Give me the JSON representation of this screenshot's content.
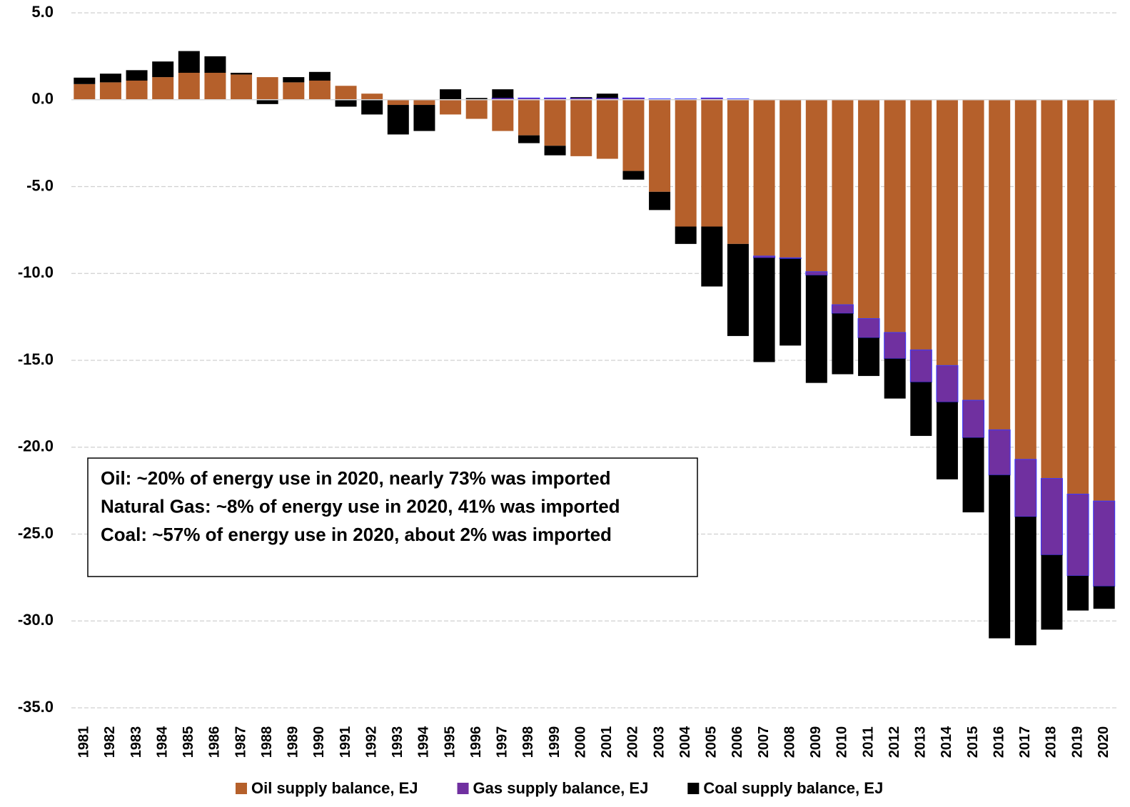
{
  "chart_data": {
    "type": "bar",
    "stacked": true,
    "categories": [
      "1981",
      "1982",
      "1983",
      "1984",
      "1985",
      "1986",
      "1987",
      "1988",
      "1989",
      "1990",
      "1991",
      "1992",
      "1993",
      "1994",
      "1995",
      "1996",
      "1997",
      "1998",
      "1999",
      "2000",
      "2001",
      "2002",
      "2003",
      "2004",
      "2005",
      "2006",
      "2007",
      "2008",
      "2009",
      "2010",
      "2011",
      "2012",
      "2013",
      "2014",
      "2015",
      "2016",
      "2017",
      "2018",
      "2019",
      "2020"
    ],
    "series": [
      {
        "name": "Oil supply balance, EJ",
        "color": "#b5602b",
        "values": [
          0.9,
          1.0,
          1.1,
          1.3,
          1.55,
          1.55,
          1.45,
          1.3,
          1.0,
          1.1,
          0.8,
          0.35,
          -0.3,
          -0.3,
          -0.85,
          -1.1,
          -1.8,
          -2.05,
          -2.65,
          -3.25,
          -3.4,
          -4.1,
          -5.3,
          -7.3,
          -7.3,
          -8.3,
          -9.0,
          -9.1,
          -9.9,
          -11.8,
          -12.6,
          -13.4,
          -14.4,
          -15.3,
          -17.3,
          -19.0,
          -20.7,
          -21.8,
          -22.7,
          -23.1
        ]
      },
      {
        "name": "Gas supply balance, EJ",
        "color": "#7030a0",
        "values": [
          0,
          0,
          0,
          0,
          0,
          0,
          0,
          0,
          0,
          0,
          0,
          0,
          0,
          0,
          0,
          0,
          0.1,
          0.1,
          0.1,
          0.1,
          0.1,
          0.1,
          0.05,
          0.05,
          0.1,
          0.05,
          -0.1,
          -0.05,
          -0.2,
          -0.5,
          -1.1,
          -1.5,
          -1.85,
          -2.1,
          -2.15,
          -2.6,
          -3.3,
          -4.4,
          -4.7,
          -4.9
        ]
      },
      {
        "name": "Coal supply balance, EJ",
        "color": "#000000",
        "values": [
          0.37,
          0.5,
          0.6,
          0.9,
          1.25,
          0.95,
          0.1,
          -0.25,
          0.3,
          0.5,
          -0.4,
          -0.85,
          -1.7,
          -1.5,
          0.6,
          0.1,
          0.5,
          -0.45,
          -0.55,
          0.05,
          0.25,
          -0.5,
          -1.05,
          -1.0,
          -3.45,
          -5.3,
          -6.0,
          -5.0,
          -6.2,
          -3.5,
          -2.2,
          -2.3,
          -3.1,
          -4.45,
          -4.3,
          -9.4,
          -7.4,
          -4.3,
          -2.0,
          -1.3
        ]
      }
    ],
    "ylim": [
      -35,
      5
    ],
    "yticks": [
      {
        "value": 5,
        "label": "5.0"
      },
      {
        "value": 0,
        "label": "0.0"
      },
      {
        "value": -5,
        "label": "-5.0"
      },
      {
        "value": -10,
        "label": "-10.0"
      },
      {
        "value": -15,
        "label": "-15.0"
      },
      {
        "value": -20,
        "label": "-20.0"
      },
      {
        "value": -25,
        "label": "-25.0"
      },
      {
        "value": -30,
        "label": "-30.0"
      },
      {
        "value": -35,
        "label": "-35.0"
      }
    ],
    "grid": true,
    "legend": "bottom",
    "annotations": [
      {
        "text": "Oil: ~20% of energy use in 2020, nearly 73% was imported",
        "color": "#a0522d"
      },
      {
        "text": "Natural Gas: ~8% of energy use in 2020, 41% was imported",
        "color": "#7030a0"
      },
      {
        "text": "Coal: ~57% of energy use in 2020, about 2% was imported",
        "color": "#000000"
      }
    ]
  }
}
